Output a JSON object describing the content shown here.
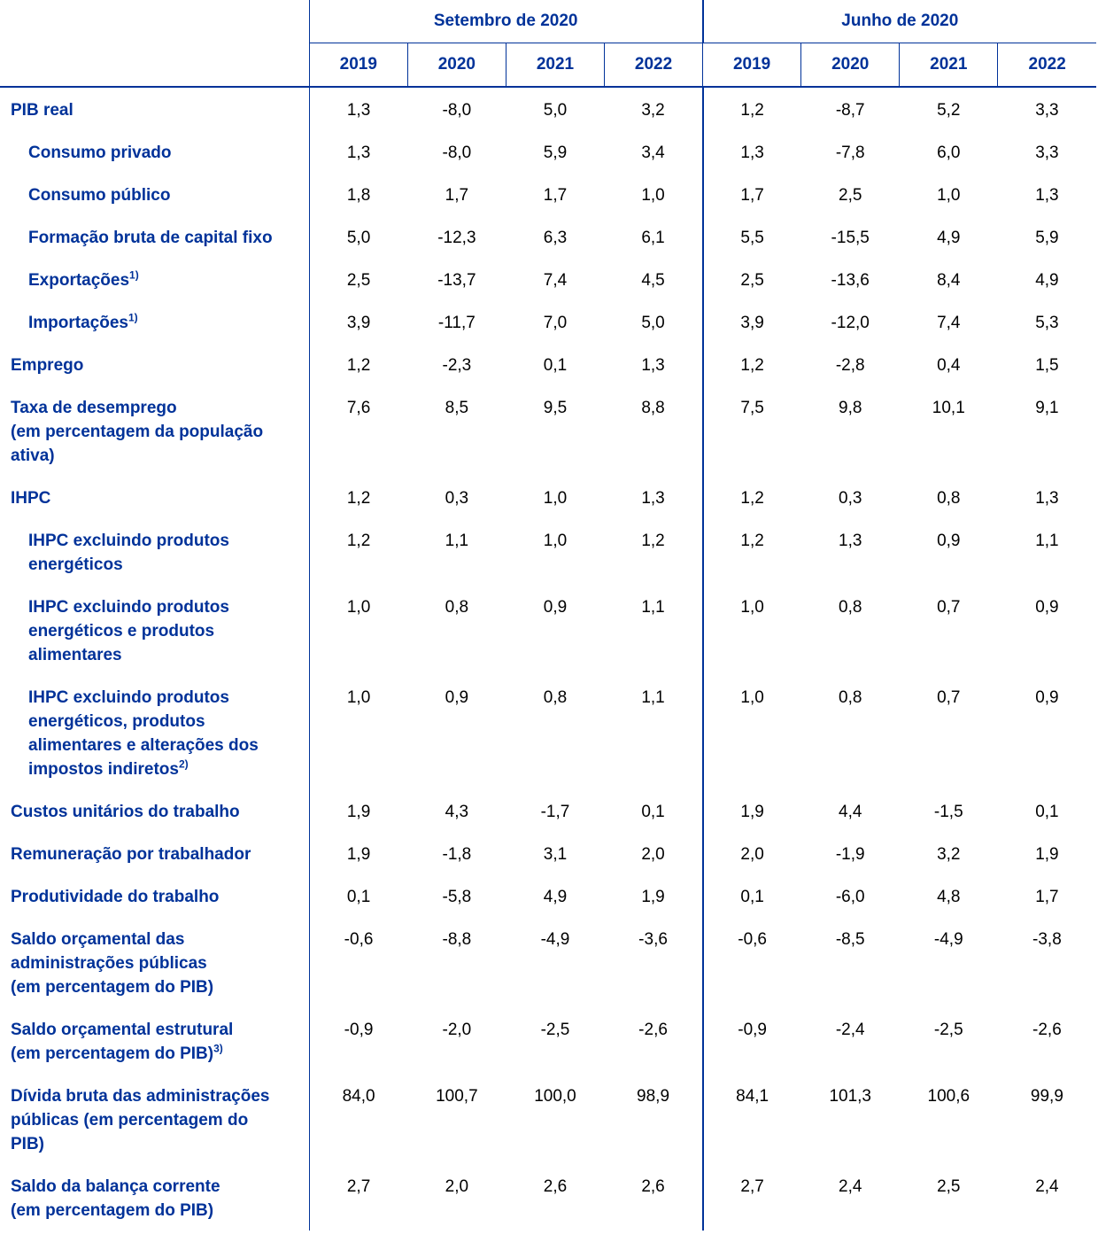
{
  "table": {
    "groups": [
      {
        "title": "Setembro de 2020",
        "years": [
          "2019",
          "2020",
          "2021",
          "2022"
        ]
      },
      {
        "title": "Junho de 2020",
        "years": [
          "2019",
          "2020",
          "2021",
          "2022"
        ]
      }
    ],
    "rows": [
      {
        "lines": [
          "PIB real"
        ],
        "indent": false,
        "values": [
          "1,3",
          "-8,0",
          "5,0",
          "3,2",
          "1,2",
          "-8,7",
          "5,2",
          "3,3"
        ]
      },
      {
        "lines": [
          "Consumo privado"
        ],
        "indent": true,
        "values": [
          "1,3",
          "-8,0",
          "5,9",
          "3,4",
          "1,3",
          "-7,8",
          "6,0",
          "3,3"
        ]
      },
      {
        "lines": [
          "Consumo público"
        ],
        "indent": true,
        "values": [
          "1,8",
          "1,7",
          "1,7",
          "1,0",
          "1,7",
          "2,5",
          "1,0",
          "1,3"
        ]
      },
      {
        "lines": [
          "Formação bruta de capital fixo"
        ],
        "indent": true,
        "values": [
          "5,0",
          "-12,3",
          "6,3",
          "6,1",
          "5,5",
          "-15,5",
          "4,9",
          "5,9"
        ]
      },
      {
        "lines": [
          "Exportações"
        ],
        "note": "1)",
        "indent": true,
        "values": [
          "2,5",
          "-13,7",
          "7,4",
          "4,5",
          "2,5",
          "-13,6",
          "8,4",
          "4,9"
        ]
      },
      {
        "lines": [
          "Importações"
        ],
        "note": "1)",
        "indent": true,
        "values": [
          "3,9",
          "-11,7",
          "7,0",
          "5,0",
          "3,9",
          "-12,0",
          "7,4",
          "5,3"
        ]
      },
      {
        "lines": [
          "Emprego"
        ],
        "indent": false,
        "values": [
          "1,2",
          "-2,3",
          "0,1",
          "1,3",
          "1,2",
          "-2,8",
          "0,4",
          "1,5"
        ]
      },
      {
        "lines": [
          "Taxa de desemprego",
          "(em percentagem da população",
          "ativa)"
        ],
        "indent": false,
        "values": [
          "7,6",
          "8,5",
          "9,5",
          "8,8",
          "7,5",
          "9,8",
          "10,1",
          "9,1"
        ]
      },
      {
        "lines": [
          "IHPC"
        ],
        "indent": false,
        "values": [
          "1,2",
          "0,3",
          "1,0",
          "1,3",
          "1,2",
          "0,3",
          "0,8",
          "1,3"
        ]
      },
      {
        "lines": [
          "IHPC excluindo produtos",
          "energéticos"
        ],
        "indent": true,
        "values": [
          "1,2",
          "1,1",
          "1,0",
          "1,2",
          "1,2",
          "1,3",
          "0,9",
          "1,1"
        ]
      },
      {
        "lines": [
          "IHPC excluindo produtos",
          "energéticos e produtos",
          "alimentares"
        ],
        "indent": true,
        "values": [
          "1,0",
          "0,8",
          "0,9",
          "1,1",
          "1,0",
          "0,8",
          "0,7",
          "0,9"
        ]
      },
      {
        "lines": [
          "IHPC excluindo produtos",
          "energéticos, produtos",
          "alimentares e alterações dos",
          "impostos indiretos"
        ],
        "note": "2)",
        "indent": true,
        "values": [
          "1,0",
          "0,9",
          "0,8",
          "1,1",
          "1,0",
          "0,8",
          "0,7",
          "0,9"
        ]
      },
      {
        "lines": [
          "Custos unitários do trabalho"
        ],
        "indent": false,
        "values": [
          "1,9",
          "4,3",
          "-1,7",
          "0,1",
          "1,9",
          "4,4",
          "-1,5",
          "0,1"
        ]
      },
      {
        "lines": [
          "Remuneração por trabalhador"
        ],
        "indent": false,
        "values": [
          "1,9",
          "-1,8",
          "3,1",
          "2,0",
          "2,0",
          "-1,9",
          "3,2",
          "1,9"
        ]
      },
      {
        "lines": [
          "Produtividade do trabalho"
        ],
        "indent": false,
        "values": [
          "0,1",
          "-5,8",
          "4,9",
          "1,9",
          "0,1",
          "-6,0",
          "4,8",
          "1,7"
        ]
      },
      {
        "lines": [
          "Saldo orçamental das",
          "administrações públicas",
          "(em percentagem do PIB)"
        ],
        "indent": false,
        "values": [
          "-0,6",
          "-8,8",
          "-4,9",
          "-3,6",
          "-0,6",
          "-8,5",
          "-4,9",
          "-3,8"
        ]
      },
      {
        "lines": [
          "Saldo orçamental estrutural",
          "(em percentagem do PIB)"
        ],
        "note": "3)",
        "indent": false,
        "values": [
          "-0,9",
          "-2,0",
          "-2,5",
          "-2,6",
          "-0,9",
          "-2,4",
          "-2,5",
          "-2,6"
        ]
      },
      {
        "lines": [
          "Dívida bruta das administrações",
          "públicas (em percentagem do",
          "PIB)"
        ],
        "indent": false,
        "values": [
          "84,0",
          "100,7",
          "100,0",
          "98,9",
          "84,1",
          "101,3",
          "100,6",
          "99,9"
        ]
      },
      {
        "lines": [
          "Saldo da balança corrente",
          "(em percentagem do PIB)"
        ],
        "indent": false,
        "values": [
          "2,7",
          "2,0",
          "2,6",
          "2,6",
          "2,7",
          "2,4",
          "2,5",
          "2,4"
        ]
      }
    ]
  }
}
